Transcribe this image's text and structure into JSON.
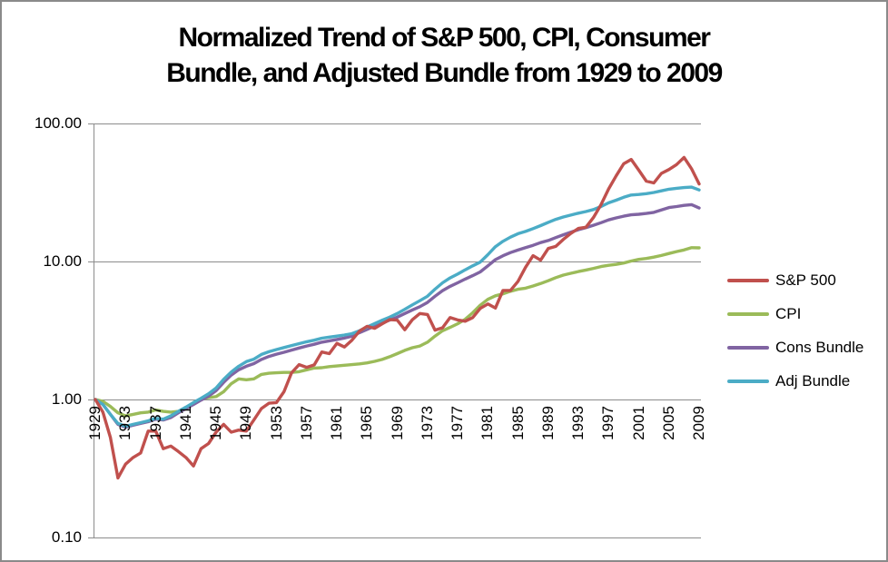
{
  "chart_data": {
    "type": "line",
    "title": "Normalized Trend of S&P 500, CPI, Consumer Bundle, and Adjusted Bundle from 1929 to 2009",
    "title_lines": [
      "Normalized Trend of S&P 500, CPI, Consumer",
      "Bundle, and Adjusted Bundle from 1929 to 2009"
    ],
    "x_label": "",
    "y_label": "",
    "grid": "horizontal",
    "legend_position": "right",
    "y_axis": {
      "scale": "log",
      "range": [
        0.1,
        100
      ],
      "ticks": [
        100,
        10,
        1,
        0.1
      ],
      "tick_labels": [
        "100.00",
        "10.00",
        "1.00",
        "0.10"
      ]
    },
    "x_axis": {
      "start": 1929,
      "end": 2009,
      "step": 1,
      "tick_labels": [
        "1929",
        "1933",
        "1937",
        "1941",
        "1945",
        "1949",
        "1953",
        "1957",
        "1961",
        "1965",
        "1969",
        "1973",
        "1977",
        "1981",
        "1985",
        "1989",
        "1993",
        "1997",
        "2001",
        "2005",
        "2009"
      ]
    },
    "x": [
      1929,
      1930,
      1931,
      1932,
      1933,
      1934,
      1935,
      1936,
      1937,
      1938,
      1939,
      1940,
      1941,
      1942,
      1943,
      1944,
      1945,
      1946,
      1947,
      1948,
      1949,
      1950,
      1951,
      1952,
      1953,
      1954,
      1955,
      1956,
      1957,
      1958,
      1959,
      1960,
      1961,
      1962,
      1963,
      1964,
      1965,
      1966,
      1967,
      1968,
      1969,
      1970,
      1971,
      1972,
      1973,
      1974,
      1975,
      1976,
      1977,
      1978,
      1979,
      1980,
      1981,
      1982,
      1983,
      1984,
      1985,
      1986,
      1987,
      1988,
      1989,
      1990,
      1991,
      1992,
      1993,
      1994,
      1995,
      1996,
      1997,
      1998,
      1999,
      2000,
      2001,
      2002,
      2003,
      2004,
      2005,
      2006,
      2007,
      2008,
      2009
    ],
    "series": [
      {
        "name": "S&P 500",
        "color": "#C0504D",
        "values": [
          1.0,
          0.81,
          0.53,
          0.27,
          0.34,
          0.38,
          0.41,
          0.59,
          0.59,
          0.44,
          0.46,
          0.42,
          0.38,
          0.33,
          0.44,
          0.48,
          0.58,
          0.66,
          0.58,
          0.6,
          0.59,
          0.71,
          0.86,
          0.94,
          0.95,
          1.14,
          1.56,
          1.79,
          1.71,
          1.78,
          2.21,
          2.15,
          2.55,
          2.4,
          2.69,
          3.13,
          3.39,
          3.28,
          3.53,
          3.79,
          3.76,
          3.2,
          3.78,
          4.2,
          4.13,
          3.18,
          3.31,
          3.92,
          3.77,
          3.69,
          3.92,
          4.57,
          4.92,
          4.6,
          6.17,
          6.17,
          7.18,
          9.07,
          11.02,
          10.21,
          12.41,
          12.86,
          14.46,
          15.98,
          17.35,
          17.69,
          20.82,
          25.77,
          33.57,
          41.72,
          51.01,
          54.85,
          45.89,
          38.2,
          37.1,
          43.45,
          46.4,
          50.36,
          56.77,
          46.89,
          36.44
        ]
      },
      {
        "name": "CPI",
        "color": "#9BBB59",
        "values": [
          1.0,
          0.97,
          0.89,
          0.8,
          0.76,
          0.78,
          0.8,
          0.81,
          0.84,
          0.82,
          0.81,
          0.82,
          0.86,
          0.95,
          1.01,
          1.03,
          1.05,
          1.14,
          1.3,
          1.41,
          1.39,
          1.41,
          1.52,
          1.55,
          1.56,
          1.57,
          1.57,
          1.59,
          1.64,
          1.69,
          1.7,
          1.73,
          1.75,
          1.77,
          1.79,
          1.81,
          1.84,
          1.89,
          1.95,
          2.04,
          2.15,
          2.27,
          2.37,
          2.44,
          2.6,
          2.88,
          3.15,
          3.33,
          3.54,
          3.81,
          4.25,
          4.82,
          5.32,
          5.64,
          5.82,
          6.08,
          6.29,
          6.41,
          6.64,
          6.92,
          7.25,
          7.64,
          7.97,
          8.21,
          8.45,
          8.67,
          8.91,
          9.18,
          9.39,
          9.53,
          9.74,
          10.07,
          10.36,
          10.52,
          10.76,
          11.05,
          11.42,
          11.79,
          12.13,
          12.59,
          12.55
        ]
      },
      {
        "name": "Cons Bundle",
        "color": "#8064A2",
        "values": [
          1.0,
          0.92,
          0.78,
          0.66,
          0.63,
          0.65,
          0.67,
          0.69,
          0.72,
          0.71,
          0.74,
          0.8,
          0.86,
          0.92,
          0.99,
          1.06,
          1.16,
          1.33,
          1.5,
          1.64,
          1.74,
          1.82,
          1.95,
          2.05,
          2.13,
          2.2,
          2.28,
          2.36,
          2.44,
          2.51,
          2.6,
          2.66,
          2.72,
          2.79,
          2.87,
          3.05,
          3.22,
          3.4,
          3.58,
          3.76,
          3.95,
          4.2,
          4.45,
          4.7,
          5.05,
          5.6,
          6.15,
          6.6,
          7.0,
          7.45,
          7.9,
          8.4,
          9.3,
          10.3,
          11.0,
          11.6,
          12.1,
          12.6,
          13.1,
          13.7,
          14.2,
          14.9,
          15.6,
          16.3,
          17.0,
          17.6,
          18.3,
          19.1,
          20.0,
          20.7,
          21.3,
          21.8,
          22.0,
          22.3,
          22.7,
          23.6,
          24.6,
          25.0,
          25.5,
          25.8,
          24.4
        ]
      },
      {
        "name": "Adj Bundle",
        "color": "#4BACC6",
        "values": [
          1.0,
          0.92,
          0.78,
          0.67,
          0.64,
          0.66,
          0.68,
          0.7,
          0.73,
          0.72,
          0.76,
          0.82,
          0.88,
          0.95,
          1.02,
          1.1,
          1.21,
          1.4,
          1.58,
          1.74,
          1.88,
          1.96,
          2.12,
          2.22,
          2.3,
          2.38,
          2.46,
          2.54,
          2.62,
          2.69,
          2.78,
          2.83,
          2.88,
          2.93,
          3.0,
          3.15,
          3.35,
          3.55,
          3.75,
          3.95,
          4.2,
          4.5,
          4.85,
          5.2,
          5.6,
          6.3,
          7.0,
          7.6,
          8.1,
          8.7,
          9.3,
          9.9,
          11.2,
          12.8,
          14.0,
          15.0,
          15.9,
          16.5,
          17.3,
          18.2,
          19.2,
          20.2,
          21.0,
          21.7,
          22.4,
          23.0,
          23.8,
          25.0,
          26.6,
          27.8,
          29.2,
          30.3,
          30.6,
          31.0,
          31.6,
          32.5,
          33.4,
          33.9,
          34.3,
          34.6,
          33.0
        ]
      }
    ],
    "style": {
      "gridline_color": "#8c8c8c",
      "axis_color": "#8c8c8c",
      "frame_border_color": "#8a8a8a",
      "background": "#ffffff",
      "line_width": 3.4
    }
  }
}
